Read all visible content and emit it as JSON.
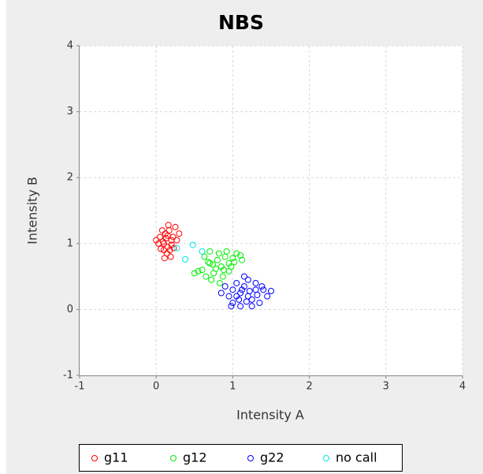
{
  "chart_data": {
    "type": "scatter",
    "title": "NBS",
    "x_label": "Intensity A",
    "y_label": "Intensity B",
    "xlim": [
      -1,
      4
    ],
    "ylim": [
      -1,
      4
    ],
    "xticks": [
      -1,
      0,
      1,
      2,
      3,
      4
    ],
    "yticks": [
      -1,
      0,
      1,
      2,
      3,
      4
    ],
    "grid": true,
    "legend": "bottom",
    "series": [
      {
        "name": "g11",
        "color": "#ff0000",
        "x": [
          0.05,
          0.1,
          0.15,
          0.2,
          0.12,
          0.18,
          0.08,
          0.22,
          0.25,
          0.14,
          0.03,
          0.17,
          0.1,
          0.2,
          0.27,
          0.13,
          0.06,
          0.19,
          0.16,
          0.09,
          0.23,
          0.11,
          0.15,
          0.3,
          0.0
        ],
        "values": [
          1.1,
          1.0,
          0.95,
          1.05,
          1.15,
          0.9,
          1.2,
          1.1,
          1.25,
          0.85,
          1.0,
          1.2,
          0.9,
          0.98,
          1.05,
          1.08,
          0.92,
          0.8,
          1.28,
          1.03,
          0.93,
          0.78,
          1.12,
          1.15,
          1.05
        ]
      },
      {
        "name": "g12",
        "color": "#00ee00",
        "x": [
          0.6,
          0.7,
          0.8,
          0.9,
          1.0,
          0.75,
          0.85,
          0.95,
          0.65,
          1.05,
          0.72,
          0.88,
          0.55,
          0.98,
          0.82,
          0.68,
          0.92,
          1.1,
          0.78,
          0.5,
          0.87,
          0.63,
          1.02,
          0.74,
          0.95,
          0.83,
          0.7,
          1.12
        ],
        "values": [
          0.6,
          0.7,
          0.75,
          0.8,
          0.78,
          0.55,
          0.65,
          0.7,
          0.5,
          0.85,
          0.45,
          0.6,
          0.58,
          0.65,
          0.85,
          0.72,
          0.88,
          0.82,
          0.62,
          0.55,
          0.5,
          0.8,
          0.72,
          0.68,
          0.58,
          0.4,
          0.88,
          0.75
        ]
      },
      {
        "name": "g22",
        "color": "#0000ff",
        "x": [
          1.0,
          1.1,
          1.2,
          1.3,
          1.05,
          1.15,
          1.25,
          0.95,
          1.35,
          1.1,
          1.2,
          0.9,
          1.4,
          1.0,
          1.3,
          1.15,
          1.05,
          1.25,
          0.85,
          1.45,
          1.12,
          1.22,
          1.08,
          1.32,
          0.98,
          1.18,
          1.38,
          1.5
        ],
        "values": [
          0.3,
          0.25,
          0.2,
          0.3,
          0.4,
          0.35,
          0.15,
          0.2,
          0.1,
          0.05,
          0.45,
          0.35,
          0.3,
          0.1,
          0.4,
          0.5,
          0.2,
          0.05,
          0.25,
          0.2,
          0.3,
          0.28,
          0.15,
          0.22,
          0.05,
          0.12,
          0.35,
          0.28
        ]
      },
      {
        "name": "no call",
        "color": "#00e5e5",
        "x": [
          0.48,
          0.38,
          0.27,
          0.6
        ],
        "values": [
          0.98,
          0.76,
          0.93,
          0.88
        ]
      }
    ]
  }
}
